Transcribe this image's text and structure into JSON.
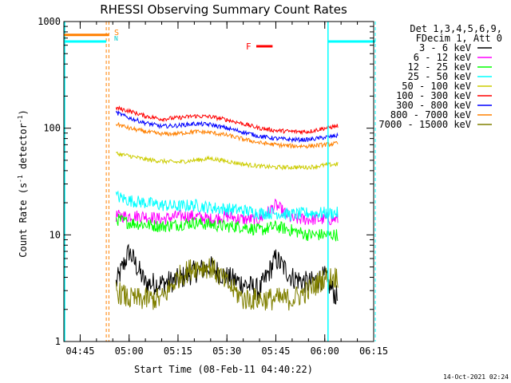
{
  "chart_data": {
    "type": "line",
    "title": "RHESSI Observing Summary Count Rates",
    "xlabel": "Start Time (08-Feb-11 04:40:22)",
    "ylabel": "Count Rate (s⁻¹ detector⁻¹)",
    "ylabel_parts": [
      "Count Rate (s",
      "-1",
      " detector",
      "-1",
      ")"
    ],
    "yscale": "log",
    "ylim": [
      1,
      1000
    ],
    "xlim_minutes": [
      0,
      95
    ],
    "x_ticks": [
      {
        "minute": 5,
        "label": "04:45"
      },
      {
        "minute": 20,
        "label": "05:00"
      },
      {
        "minute": 35,
        "label": "05:15"
      },
      {
        "minute": 50,
        "label": "05:30"
      },
      {
        "minute": 65,
        "label": "05:45"
      },
      {
        "minute": 80,
        "label": "06:00"
      },
      {
        "minute": 95,
        "label": "06:15"
      }
    ],
    "y_ticks": [
      {
        "value": 1,
        "label": "1"
      },
      {
        "value": 10,
        "label": "10"
      },
      {
        "value": 100,
        "label": "100"
      },
      {
        "value": 1000,
        "label": "1000"
      }
    ],
    "legend_header": [
      "Det 1,3,4,5,6,9,",
      "FDecim 1, Att 0"
    ],
    "legend_position": "right",
    "x_minutes": [
      16,
      20,
      25,
      30,
      35,
      40,
      45,
      50,
      55,
      60,
      65,
      70,
      75,
      80,
      84
    ],
    "series": [
      {
        "name": "3 - 6 keV",
        "color": "#000000",
        "values": [
          3.5,
          7,
          3.5,
          3.5,
          3.8,
          4.5,
          5,
          4,
          3.5,
          3,
          6,
          4,
          3.5,
          4,
          2.5
        ]
      },
      {
        "name": "6 - 12 keV",
        "color": "#ff00ff",
        "values": [
          15,
          15,
          15,
          14,
          15,
          15,
          14,
          15,
          14,
          14,
          19,
          14,
          14,
          14,
          14
        ]
      },
      {
        "name": "12 - 25 keV",
        "color": "#00ff00",
        "values": [
          14,
          13,
          12.5,
          12,
          12.5,
          13,
          12.5,
          12,
          12,
          11,
          12,
          11,
          10,
          10,
          10
        ]
      },
      {
        "name": "25 - 50 keV",
        "color": "#00ffff",
        "values": [
          23,
          21,
          20,
          19,
          18.5,
          19,
          18,
          17.5,
          17,
          16,
          16,
          15.5,
          16,
          16,
          16
        ]
      },
      {
        "name": "50 - 100 keV",
        "color": "#cccc00",
        "values": [
          58,
          55,
          51,
          49,
          48,
          50,
          52,
          49,
          46,
          44,
          43,
          43,
          43,
          45,
          46
        ]
      },
      {
        "name": "100 - 300 keV",
        "color": "#ff0000",
        "values": [
          155,
          145,
          130,
          122,
          125,
          130,
          128,
          120,
          110,
          100,
          95,
          93,
          93,
          100,
          105
        ]
      },
      {
        "name": "300 - 800 keV",
        "color": "#0000ff",
        "values": [
          140,
          125,
          112,
          104,
          106,
          110,
          108,
          100,
          92,
          84,
          80,
          78,
          78,
          82,
          85
        ]
      },
      {
        "name": "800 - 7000 keV",
        "color": "#ff8000",
        "values": [
          110,
          100,
          93,
          88,
          89,
          93,
          91,
          86,
          79,
          73,
          70,
          68,
          68,
          70,
          72
        ]
      },
      {
        "name": "7000 - 15000 keV",
        "color": "#808000",
        "values": [
          3,
          2.5,
          2.5,
          2.5,
          4,
          5,
          5,
          3.5,
          2.5,
          2.5,
          2.5,
          2.5,
          3,
          4,
          4
        ]
      }
    ],
    "annotations": {
      "S_label": "S",
      "N_label": "N",
      "F_label": "F",
      "saa_start_minute": 13,
      "saa_end_minute": 13.8,
      "night_start_minute": 81,
      "night_end_minute": 95.5,
      "flare_start_minute": 59,
      "flare_end_minute": 64,
      "att_level": 750,
      "night_level": 650
    },
    "timestamp": "14-Oct-2021 02:24"
  }
}
